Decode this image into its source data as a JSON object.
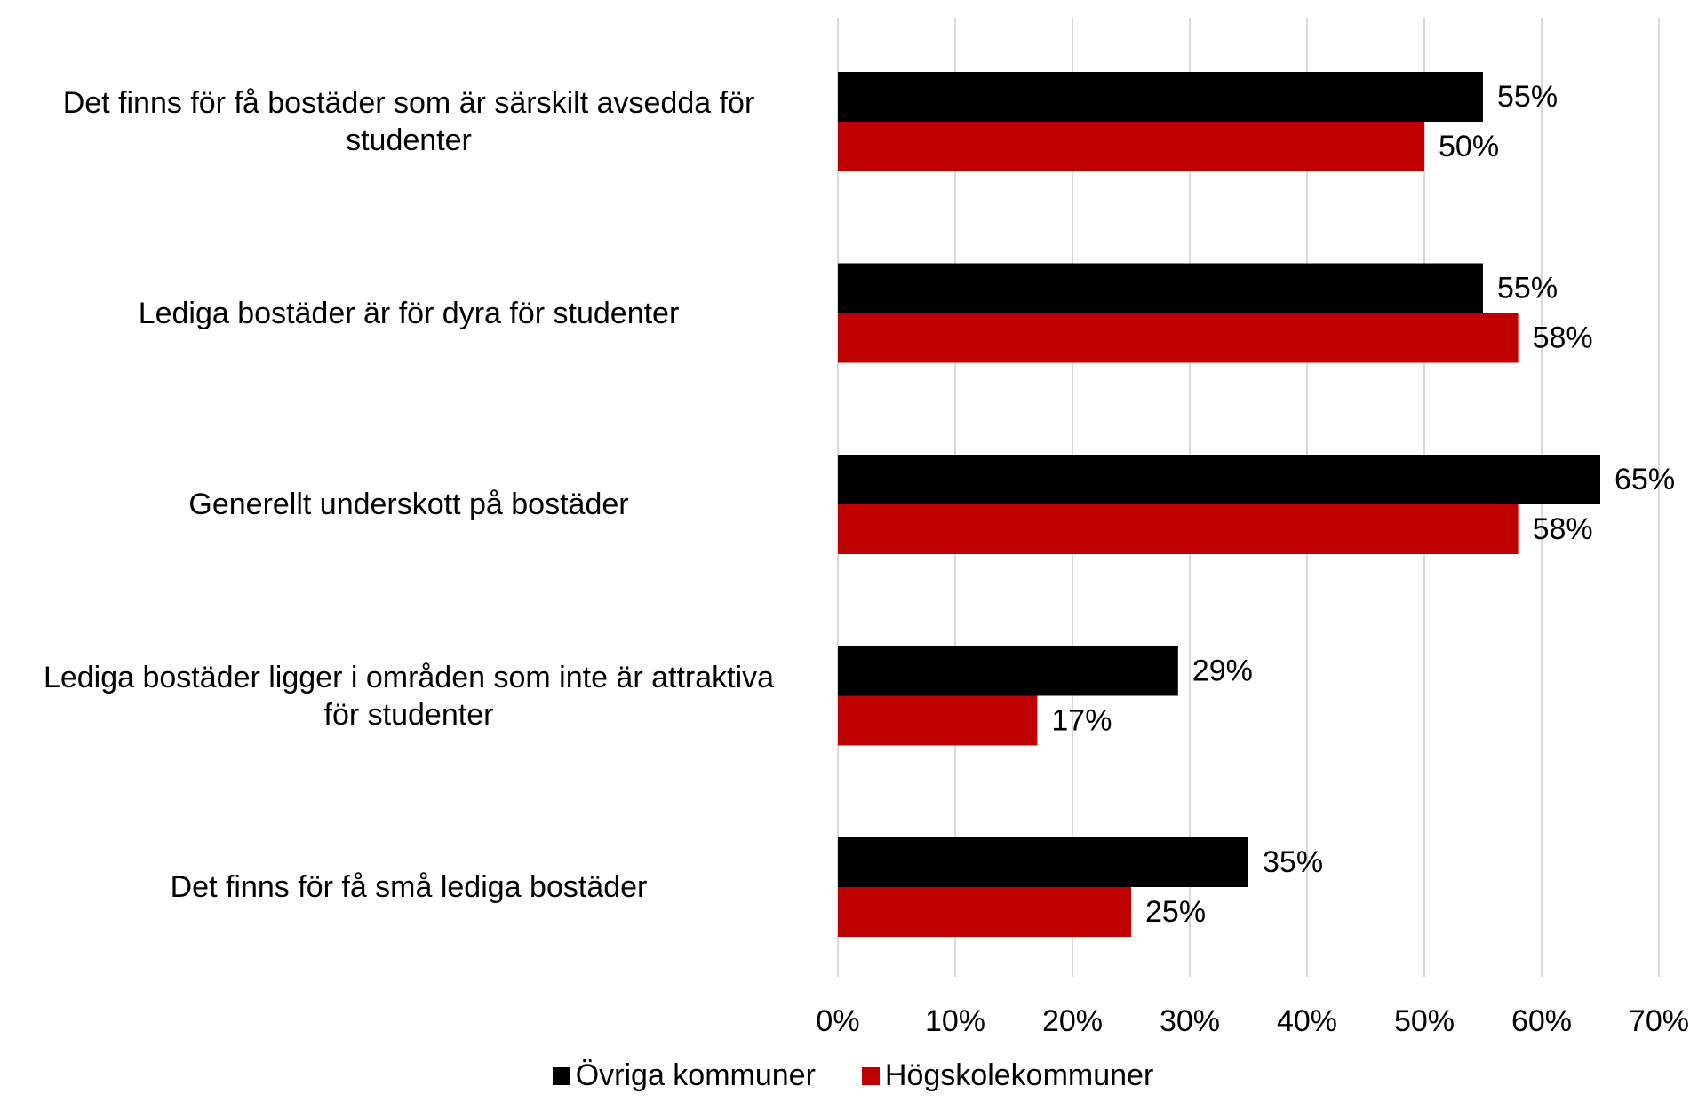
{
  "chart_data": {
    "type": "bar",
    "orientation": "horizontal",
    "categories": [
      "Det finns för få bostäder som är särskilt avsedda för studenter",
      "Lediga bostäder är för dyra för studenter",
      "Generellt underskott på bostäder",
      "Lediga bostäder ligger i områden som inte är attraktiva för studenter",
      "Det finns för få små lediga bostäder"
    ],
    "category_lines": [
      [
        "Det finns för få bostäder som är särskilt avsedda för",
        "studenter"
      ],
      [
        "Lediga bostäder är för dyra för studenter"
      ],
      [
        "Generellt underskott på bostäder"
      ],
      [
        "Lediga bostäder ligger i områden som inte är attraktiva",
        "för studenter"
      ],
      [
        "Det finns för få små lediga bostäder"
      ]
    ],
    "series": [
      {
        "name": "Övriga kommuner",
        "color": "#000000",
        "values": [
          55,
          55,
          65,
          29,
          35
        ],
        "labels": [
          "55%",
          "55%",
          "65%",
          "29%",
          "35%"
        ]
      },
      {
        "name": "Högskolekommuner",
        "color": "#c00000",
        "values": [
          50,
          58,
          58,
          17,
          25
        ],
        "labels": [
          "50%",
          "58%",
          "58%",
          "17%",
          "25%"
        ]
      }
    ],
    "xlim": [
      0,
      70
    ],
    "xticks": [
      0,
      10,
      20,
      30,
      40,
      50,
      60,
      70
    ],
    "xtick_labels": [
      "0%",
      "10%",
      "20%",
      "30%",
      "40%",
      "50%",
      "60%",
      "70%"
    ],
    "grid": true,
    "legend_position": "bottom"
  }
}
